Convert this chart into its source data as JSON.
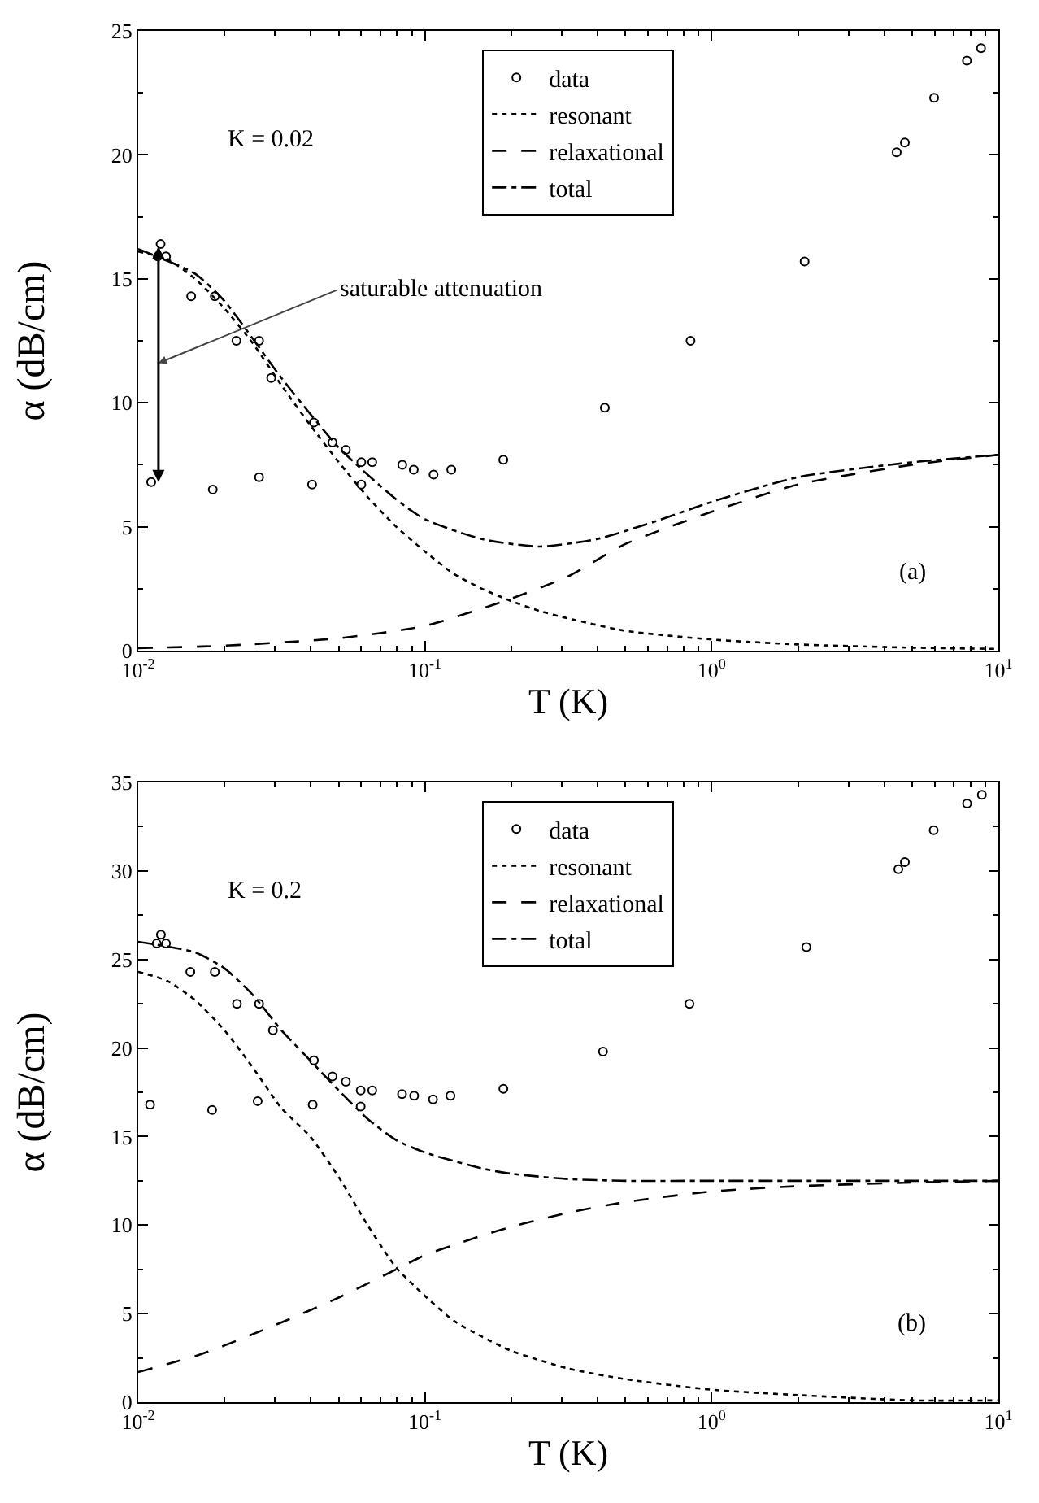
{
  "chart_data": [
    {
      "type": "line",
      "xlabel": "T (K)",
      "ylabel": "α (dB/cm)",
      "log": "x",
      "xlim": [
        0.01,
        10
      ],
      "xticks": [
        {
          "value": 0.01,
          "label": "10$^{-2}$"
        },
        {
          "value": 0.1,
          "label": "10$^{-1}$"
        },
        {
          "value": 1,
          "label": "10$^{0}$"
        },
        {
          "value": 10,
          "label": "10$^{1}$"
        }
      ],
      "ylim": [
        0,
        25
      ],
      "yticks": [
        0,
        5,
        10,
        15,
        20,
        25
      ],
      "grid": false,
      "legend": "top",
      "annotations": [
        "K = 0.02",
        "(a)",
        "saturable attenuation"
      ],
      "series": [
        {
          "name": "data",
          "type": "scatter",
          "marker": "circle",
          "color": "#000000",
          "x": [
            0.0111,
            0.0117,
            0.01197,
            0.0125,
            0.0153,
            0.0182,
            0.0185,
            0.022,
            0.0264,
            0.0264,
            0.0291,
            0.0404,
            0.041,
            0.0476,
            0.053,
            0.06,
            0.06,
            0.0655,
            0.0834,
            0.0914,
            0.1072,
            0.1236,
            0.1877,
            0.4242,
            0.844,
            2.11,
            4.42,
            4.72,
            5.97,
            7.77,
            8.7
          ],
          "values": [
            6.8,
            15.9,
            16.4,
            15.9,
            14.3,
            6.5,
            14.3,
            12.5,
            12.5,
            7.0,
            11.0,
            6.7,
            9.2,
            8.4,
            8.1,
            7.6,
            6.7,
            7.6,
            7.5,
            7.3,
            7.1,
            7.3,
            7.7,
            9.8,
            12.5,
            15.7,
            20.1,
            20.5,
            22.3,
            23.8,
            24.3
          ]
        },
        {
          "name": "resonant",
          "line_style": "dotted",
          "color": "#000000",
          "x": [
            0.01,
            0.0126,
            0.0158,
            0.02,
            0.0251,
            0.0316,
            0.0398,
            0.0501,
            0.0631,
            0.0794,
            0.1,
            0.126,
            0.158,
            0.2,
            0.251,
            0.316,
            0.5,
            1,
            2,
            5,
            10
          ],
          "values": [
            16.1,
            15.8,
            15.0,
            13.8,
            12.4,
            10.7,
            9.1,
            7.6,
            6.2,
            5.0,
            4.0,
            3.1,
            2.5,
            2.0,
            1.6,
            1.3,
            0.8,
            0.45,
            0.25,
            0.12,
            0.07
          ]
        },
        {
          "name": "relaxational",
          "line_style": "dashed",
          "color": "#000000",
          "x": [
            0.01,
            0.02,
            0.05,
            0.1,
            0.2,
            0.316,
            0.5,
            1,
            2,
            5,
            10
          ],
          "values": [
            0.1,
            0.2,
            0.5,
            1.0,
            2.1,
            3.0,
            4.3,
            5.6,
            6.7,
            7.5,
            7.9
          ]
        },
        {
          "name": "total",
          "line_style": "dashdot",
          "color": "#000000",
          "x": [
            0.01,
            0.0158,
            0.02,
            0.0316,
            0.05,
            0.0794,
            0.1,
            0.158,
            0.251,
            0.398,
            0.631,
            1,
            2,
            5,
            10
          ],
          "values": [
            16.2,
            15.2,
            14.1,
            11.0,
            8.2,
            6.1,
            5.3,
            4.5,
            4.2,
            4.5,
            5.2,
            6.0,
            7.0,
            7.6,
            7.9
          ]
        }
      ]
    },
    {
      "type": "line",
      "xlabel": "T (K)",
      "ylabel": "α (dB/cm)",
      "log": "x",
      "xlim": [
        0.01,
        10
      ],
      "xticks": [
        {
          "value": 0.01,
          "label": "10$^{-2}$"
        },
        {
          "value": 0.1,
          "label": "10$^{-1}$"
        },
        {
          "value": 1,
          "label": "10$^{0}$"
        },
        {
          "value": 10,
          "label": "10$^{1}$"
        }
      ],
      "ylim": [
        0,
        35
      ],
      "yticks": [
        0,
        5,
        10,
        15,
        20,
        25,
        30,
        35
      ],
      "grid": false,
      "legend": "top",
      "annotations": [
        "K = 0.2",
        "(b)"
      ],
      "series": [
        {
          "name": "data",
          "type": "scatter",
          "marker": "circle",
          "color": "#000000",
          "x": [
            0.011,
            0.0116,
            0.012,
            0.0125,
            0.0152,
            0.0181,
            0.0185,
            0.0221,
            0.0261,
            0.0264,
            0.0295,
            0.0406,
            0.041,
            0.0476,
            0.053,
            0.0597,
            0.0597,
            0.0655,
            0.0832,
            0.0917,
            0.1067,
            0.1228,
            0.1878,
            0.418,
            0.837,
            2.14,
            4.48,
            4.72,
            5.95,
            7.78,
            8.76
          ],
          "values": [
            16.8,
            25.9,
            26.4,
            25.9,
            24.3,
            16.5,
            24.3,
            22.5,
            17.0,
            22.5,
            21.0,
            16.8,
            19.3,
            18.4,
            18.1,
            17.6,
            16.7,
            17.6,
            17.4,
            17.3,
            17.1,
            17.3,
            17.7,
            19.8,
            22.5,
            25.7,
            30.1,
            30.5,
            32.3,
            33.8,
            34.3
          ]
        },
        {
          "name": "resonant",
          "line_style": "dotted",
          "color": "#000000",
          "x": [
            0.01,
            0.0126,
            0.0158,
            0.02,
            0.0251,
            0.0316,
            0.0398,
            0.0501,
            0.0631,
            0.0794,
            0.1,
            0.126,
            0.158,
            0.2,
            0.316,
            0.5,
            1,
            2,
            5,
            10
          ],
          "values": [
            24.3,
            23.8,
            22.7,
            21.0,
            18.9,
            16.6,
            15.0,
            12.7,
            10.0,
            7.6,
            6.0,
            4.6,
            3.7,
            2.9,
            1.9,
            1.3,
            0.7,
            0.4,
            0.1,
            0.1
          ]
        },
        {
          "name": "relaxational",
          "line_style": "dashed",
          "color": "#000000",
          "x": [
            0.01,
            0.0158,
            0.02,
            0.0316,
            0.05,
            0.0794,
            0.1,
            0.158,
            0.2,
            0.316,
            0.5,
            1,
            2,
            5,
            10
          ],
          "values": [
            1.7,
            2.6,
            3.2,
            4.5,
            5.9,
            7.5,
            8.3,
            9.4,
            9.9,
            10.7,
            11.3,
            11.9,
            12.2,
            12.4,
            12.5
          ]
        },
        {
          "name": "total",
          "line_style": "dashdot",
          "color": "#000000",
          "x": [
            0.01,
            0.0158,
            0.02,
            0.0251,
            0.0316,
            0.0398,
            0.0501,
            0.0631,
            0.0794,
            0.1,
            0.158,
            0.2,
            0.316,
            0.5,
            1,
            10
          ],
          "values": [
            26.0,
            25.4,
            24.5,
            23.0,
            21.0,
            19.3,
            17.6,
            16.0,
            14.8,
            14.1,
            13.2,
            12.9,
            12.6,
            12.5,
            12.5,
            12.5
          ]
        }
      ]
    }
  ]
}
